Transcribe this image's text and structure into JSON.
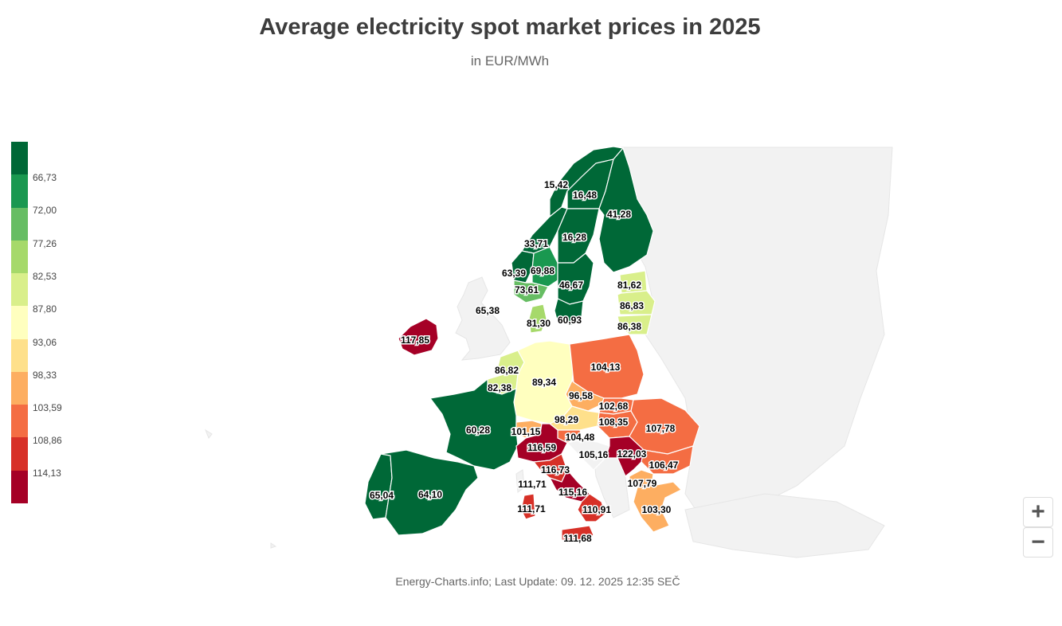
{
  "title": "Average electricity spot market prices in 2025",
  "subtitle": "in EUR/MWh",
  "footer": "Energy-Charts.info; Last Update: 09. 12. 2025 12:35 SEČ",
  "zoom": {
    "in_label": "+",
    "out_label": "−"
  },
  "colors": {
    "background_land": "#f2f2f2",
    "border": "#ffffff",
    "scale": [
      "#006837",
      "#1a9850",
      "#66bd63",
      "#a6d96a",
      "#d9ef8b",
      "#ffffbf",
      "#fee08b",
      "#fdae61",
      "#f46d43",
      "#d73027",
      "#a50026"
    ]
  },
  "legend": {
    "labels": [
      "66,73",
      "72,00",
      "77,26",
      "82,53",
      "87,80",
      "93,06",
      "98,33",
      "103,59",
      "108,86",
      "114,13"
    ]
  },
  "chart_data": {
    "type": "choropleth",
    "title": "Average electricity spot market prices in 2025",
    "unit": "EUR/MWh",
    "regions": [
      {
        "id": "NO4",
        "label": "15,42",
        "value": 15.42
      },
      {
        "id": "SE1",
        "label": "16,48",
        "value": 16.48
      },
      {
        "id": "FI",
        "label": "41,28",
        "value": 41.28
      },
      {
        "id": "SE2",
        "label": "16,28",
        "value": 16.28
      },
      {
        "id": "NO3",
        "label": "33,71",
        "value": 33.71
      },
      {
        "id": "NO5",
        "label": "63,39",
        "value": 63.39
      },
      {
        "id": "NO1",
        "label": "69,88",
        "value": 69.88
      },
      {
        "id": "NO2",
        "label": "73,61",
        "value": 73.61
      },
      {
        "id": "SE3",
        "label": "46,67",
        "value": 46.67
      },
      {
        "id": "EE",
        "label": "81,62",
        "value": 81.62
      },
      {
        "id": "LV",
        "label": "86,83",
        "value": 86.83
      },
      {
        "id": "LT",
        "label": "86,38",
        "value": 86.38
      },
      {
        "id": "GB",
        "label": "65,38",
        "value": 65.38
      },
      {
        "id": "DK1",
        "label": "81,30",
        "value": 81.3
      },
      {
        "id": "SE4",
        "label": "60,93",
        "value": 60.93
      },
      {
        "id": "IE",
        "label": "117,85",
        "value": 117.85
      },
      {
        "id": "NL",
        "label": "86,82",
        "value": 86.82
      },
      {
        "id": "BE",
        "label": "82,38",
        "value": 82.38
      },
      {
        "id": "DE",
        "label": "89,34",
        "value": 89.34
      },
      {
        "id": "PL",
        "label": "104,13",
        "value": 104.13
      },
      {
        "id": "CZ",
        "label": "96,58",
        "value": 96.58
      },
      {
        "id": "SK",
        "label": "102,68",
        "value": 102.68
      },
      {
        "id": "AT",
        "label": "98,29",
        "value": 98.29
      },
      {
        "id": "HU",
        "label": "108,35",
        "value": 108.35
      },
      {
        "id": "RO",
        "label": "107,78",
        "value": 107.78
      },
      {
        "id": "FR",
        "label": "60,28",
        "value": 60.28
      },
      {
        "id": "CH",
        "label": "101,15",
        "value": 101.15
      },
      {
        "id": "SI",
        "label": "104,48",
        "value": 104.48
      },
      {
        "id": "IT-N",
        "label": "116,59",
        "value": 116.59
      },
      {
        "id": "HR",
        "label": "105,16",
        "value": 105.16
      },
      {
        "id": "RS",
        "label": "122,03",
        "value": 122.03
      },
      {
        "id": "BG",
        "label": "106,47",
        "value": 106.47
      },
      {
        "id": "IT-CN",
        "label": "116,73",
        "value": 116.73
      },
      {
        "id": "MK",
        "label": "107,79",
        "value": 107.79
      },
      {
        "id": "IT-SAR1",
        "label": "111,71",
        "value": 111.71
      },
      {
        "id": "IT-CS",
        "label": "115,16",
        "value": 115.16
      },
      {
        "id": "GR",
        "label": "103,30",
        "value": 103.3
      },
      {
        "id": "PT",
        "label": "65,04",
        "value": 65.04
      },
      {
        "id": "ES",
        "label": "64,10",
        "value": 64.1
      },
      {
        "id": "IT-SAR2",
        "label": "111,71",
        "value": 111.71
      },
      {
        "id": "IT-S",
        "label": "110,91",
        "value": 110.91
      },
      {
        "id": "IT-SIC",
        "label": "111,68",
        "value": 111.68
      }
    ]
  }
}
